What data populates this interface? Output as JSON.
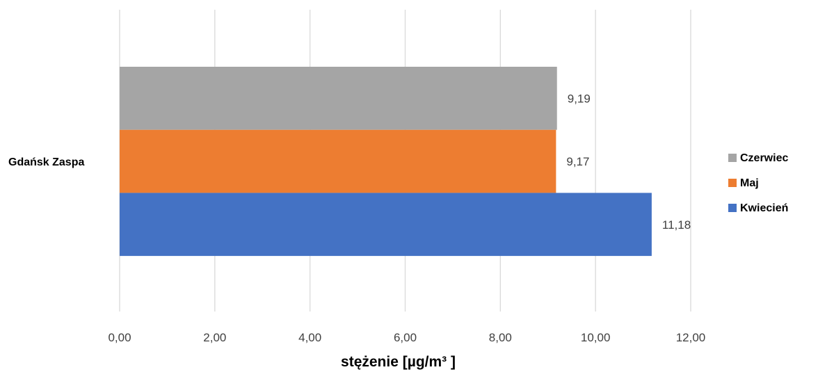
{
  "chart_data": {
    "type": "bar",
    "orientation": "horizontal",
    "categories": [
      "Gdańsk Zaspa"
    ],
    "series": [
      {
        "name": "Kwiecień",
        "values": [
          11.18
        ],
        "value_label": "11,18",
        "color": "#4472C4"
      },
      {
        "name": "Maj",
        "values": [
          9.17
        ],
        "value_label": "9,17",
        "color": "#ED7D31"
      },
      {
        "name": "Czerwiec",
        "values": [
          9.19
        ],
        "value_label": "9,19",
        "color": "#A5A5A5"
      }
    ],
    "xlim": [
      0,
      12
    ],
    "x_ticks": [
      "0,00",
      "2,00",
      "4,00",
      "6,00",
      "8,00",
      "10,00",
      "12,00"
    ],
    "xlabel": "stężenie [µg/m³ ]",
    "grid": "vertical",
    "legend_position": "right"
  }
}
